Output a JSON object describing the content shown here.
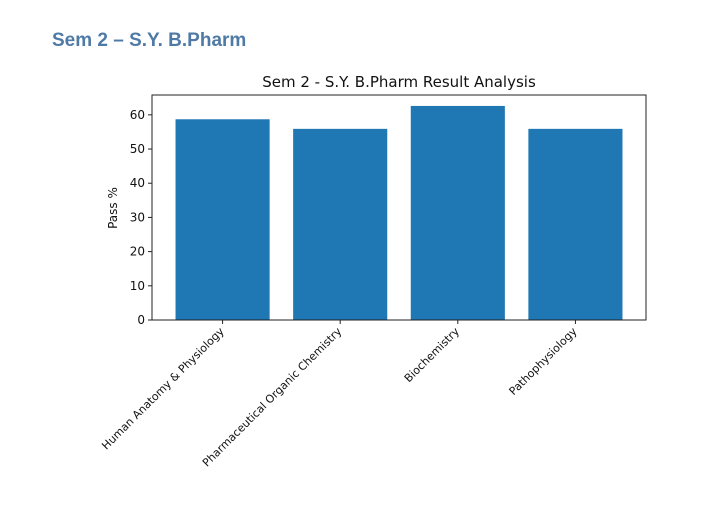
{
  "page": {
    "heading": "Sem 2 – S.Y. B.Pharm"
  },
  "colors": {
    "bar": "#1f77b4",
    "heading": "#4f7aa6"
  },
  "chart_data": {
    "type": "bar",
    "title": "Sem 2 - S.Y. B.Pharm Result Analysis",
    "xlabel": "",
    "ylabel": "Pass %",
    "categories": [
      "Human Anatomy & Physiology",
      "Pharmaceutical Organic Chemistry",
      "Biochemistry",
      "Pathophysiology"
    ],
    "values": [
      58.7,
      55.9,
      62.6,
      55.9
    ],
    "ylim": [
      0,
      65.8
    ],
    "yticks": [
      0,
      10,
      20,
      30,
      40,
      50,
      60
    ],
    "grid": false
  }
}
